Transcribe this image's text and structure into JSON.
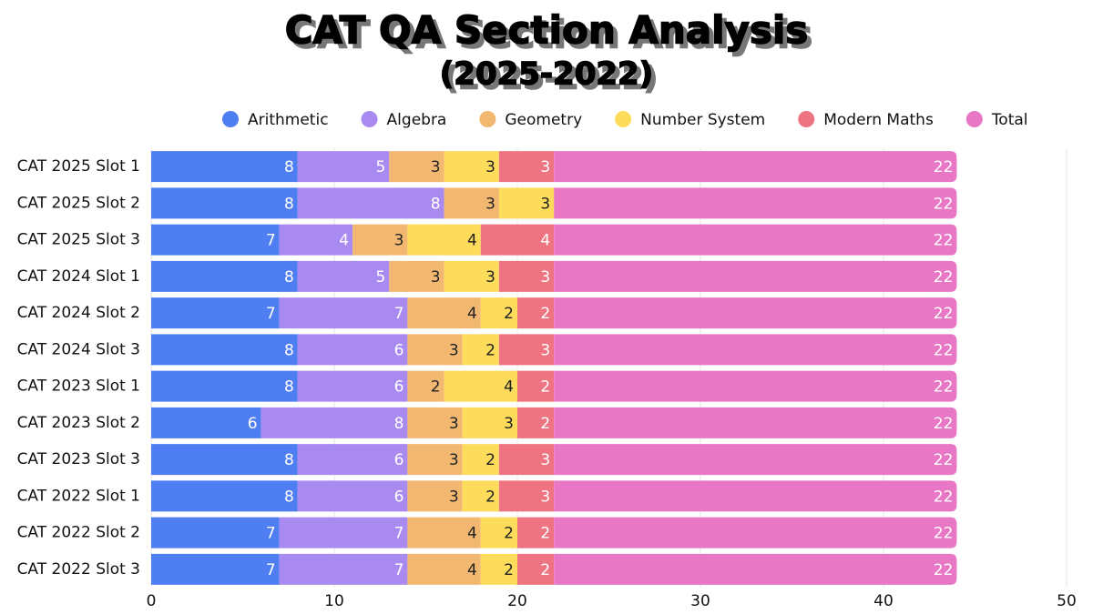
{
  "chart_data": {
    "type": "stacked-bar-horizontal",
    "title": "CAT QA Section Analysis",
    "subtitle": "(2025-2022)",
    "categories": [
      "CAT 2025 Slot 1",
      "CAT 2025 Slot 2",
      "CAT 2025 Slot 3",
      "CAT 2024 Slot 1",
      "CAT 2024 Slot 2",
      "CAT 2024 Slot 3",
      "CAT 2023 Slot 1",
      "CAT 2023 Slot 2",
      "CAT 2023 Slot 3",
      "CAT 2022 Slot 1",
      "CAT 2022 Slot 2",
      "CAT 2022 Slot 3"
    ],
    "series": [
      {
        "name": "Arithmetic",
        "color": "#4f7ef3",
        "values": [
          8,
          8,
          7,
          8,
          7,
          8,
          8,
          6,
          8,
          8,
          7,
          7
        ]
      },
      {
        "name": "Algebra",
        "color": "#a98af0",
        "values": [
          5,
          8,
          4,
          5,
          7,
          6,
          6,
          8,
          6,
          6,
          7,
          7
        ]
      },
      {
        "name": "Geometry",
        "color": "#f2b872",
        "values": [
          3,
          3,
          3,
          3,
          4,
          3,
          2,
          3,
          3,
          3,
          4,
          4
        ]
      },
      {
        "name": "Number System",
        "color": "#fddc5c",
        "values": [
          3,
          3,
          4,
          3,
          2,
          2,
          4,
          3,
          2,
          2,
          2,
          2
        ]
      },
      {
        "name": "Modern Maths",
        "color": "#ef7482",
        "values": [
          3,
          0,
          4,
          3,
          2,
          3,
          2,
          2,
          3,
          3,
          2,
          2
        ]
      },
      {
        "name": "Total",
        "color": "#e877c6",
        "values": [
          22,
          22,
          22,
          22,
          22,
          22,
          22,
          22,
          22,
          22,
          22,
          22
        ]
      }
    ],
    "xlim": [
      0,
      50
    ],
    "xticks": [
      0,
      10,
      20,
      30,
      40,
      50
    ],
    "grid": true,
    "legend": "top"
  }
}
